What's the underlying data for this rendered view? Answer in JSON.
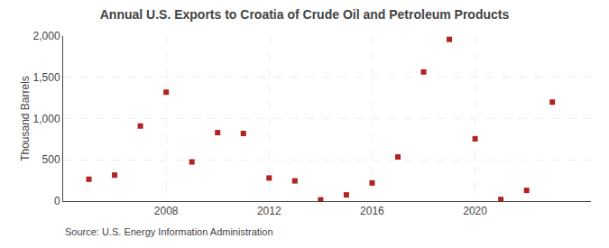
{
  "chart_data": {
    "type": "scatter",
    "title": "Annual U.S. Exports to Croatia of Crude Oil and Petroleum Products",
    "ylabel": "Thousand Barrels",
    "annotations": [
      "Source: U.S. Energy Information Administration"
    ],
    "x": [
      2005,
      2006,
      2007,
      2008,
      2009,
      2010,
      2011,
      2012,
      2013,
      2014,
      2015,
      2016,
      2017,
      2018,
      2019,
      2020,
      2021,
      2022,
      2023
    ],
    "values": [
      265,
      315,
      910,
      1320,
      475,
      830,
      820,
      280,
      245,
      15,
      75,
      220,
      535,
      1565,
      1960,
      755,
      20,
      130,
      1200
    ],
    "color": "#b22222",
    "marker": "square",
    "xlim": [
      2004.0,
      2024.5
    ],
    "xticks": [
      2008,
      2012,
      2016,
      2020
    ],
    "ylim": [
      0,
      2000
    ],
    "yticks": [
      0,
      500,
      {
        "value": 1000,
        "label": "1,000"
      },
      {
        "value": 1500,
        "label": "1,500"
      },
      {
        "value": 2000,
        "label": "2,000"
      }
    ],
    "grid": true
  }
}
